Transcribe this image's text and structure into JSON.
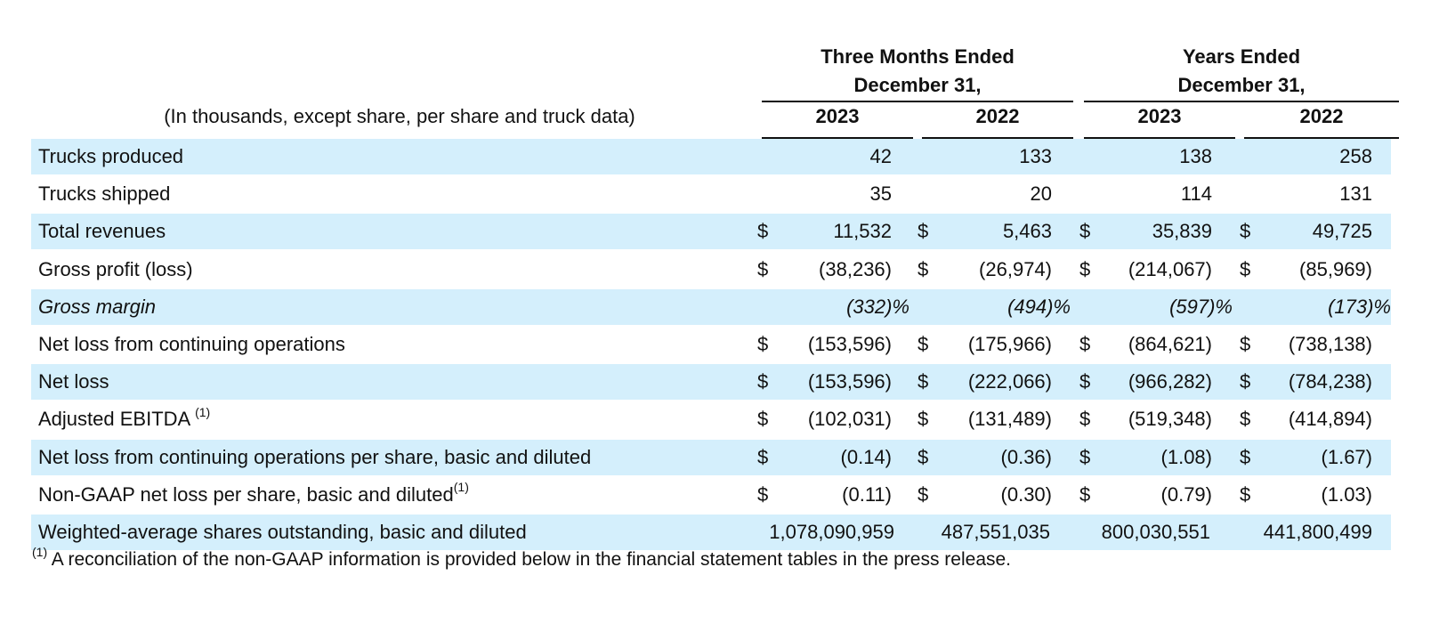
{
  "header": {
    "groups": [
      {
        "line1": "Three Months Ended",
        "line2": "December 31,",
        "years": [
          "2023",
          "2022"
        ]
      },
      {
        "line1": "Years Ended",
        "line2": "December 31,",
        "years": [
          "2023",
          "2022"
        ]
      }
    ],
    "unit_note": "(In thousands, except share, per share and truck data)"
  },
  "rows": [
    {
      "label": "Trucks produced",
      "sup": "",
      "italic": false,
      "shaded": true,
      "dollar": false,
      "percent": false,
      "values": [
        "42",
        "133",
        "138",
        "258"
      ]
    },
    {
      "label": "Trucks shipped",
      "sup": "",
      "italic": false,
      "shaded": false,
      "dollar": false,
      "percent": false,
      "values": [
        "35",
        "20",
        "114",
        "131"
      ]
    },
    {
      "label": "Total revenues",
      "sup": "",
      "italic": false,
      "shaded": true,
      "dollar": true,
      "percent": false,
      "values": [
        "11,532",
        "5,463",
        "35,839",
        "49,725"
      ]
    },
    {
      "label": "Gross profit (loss)",
      "sup": "",
      "italic": false,
      "shaded": false,
      "dollar": true,
      "percent": false,
      "values": [
        "(38,236)",
        "(26,974)",
        "(214,067)",
        "(85,969)"
      ]
    },
    {
      "label": "Gross margin",
      "sup": "",
      "italic": true,
      "shaded": true,
      "dollar": false,
      "percent": true,
      "values": [
        "(332)%",
        "(494)%",
        "(597)%",
        "(173)%"
      ]
    },
    {
      "label": "Net loss from continuing operations",
      "sup": "",
      "italic": false,
      "shaded": false,
      "dollar": true,
      "percent": false,
      "values": [
        "(153,596)",
        "(175,966)",
        "(864,621)",
        "(738,138)"
      ]
    },
    {
      "label": "Net loss",
      "sup": "",
      "italic": false,
      "shaded": true,
      "dollar": true,
      "percent": false,
      "values": [
        "(153,596)",
        "(222,066)",
        "(966,282)",
        "(784,238)"
      ]
    },
    {
      "label": "Adjusted EBITDA ",
      "sup": "(1)",
      "italic": false,
      "shaded": false,
      "dollar": true,
      "percent": false,
      "values": [
        "(102,031)",
        "(131,489)",
        "(519,348)",
        "(414,894)"
      ]
    },
    {
      "label": "Net loss from continuing operations per share, basic and diluted",
      "sup": "",
      "italic": false,
      "shaded": true,
      "dollar": true,
      "percent": false,
      "values": [
        "(0.14)",
        "(0.36)",
        "(1.08)",
        "(1.67)"
      ]
    },
    {
      "label": "Non-GAAP net loss per share, basic and diluted",
      "sup": "(1)",
      "italic": false,
      "shaded": false,
      "dollar": true,
      "percent": false,
      "values": [
        "(0.11)",
        "(0.30)",
        "(0.79)",
        "(1.03)"
      ]
    },
    {
      "label": "Weighted-average shares outstanding, basic and diluted",
      "sup": "",
      "italic": false,
      "shaded": true,
      "dollar": false,
      "percent": false,
      "values": [
        "1,078,090,959",
        "487,551,035",
        "800,030,551",
        "441,800,499"
      ]
    }
  ],
  "currency_symbol": "$",
  "footnote": {
    "marker": "(1)",
    "text": " A reconciliation of the non-GAAP information is provided below in the financial statement tables in the press release."
  },
  "colors": {
    "row_shade": "#d4effc",
    "text": "#111111"
  }
}
